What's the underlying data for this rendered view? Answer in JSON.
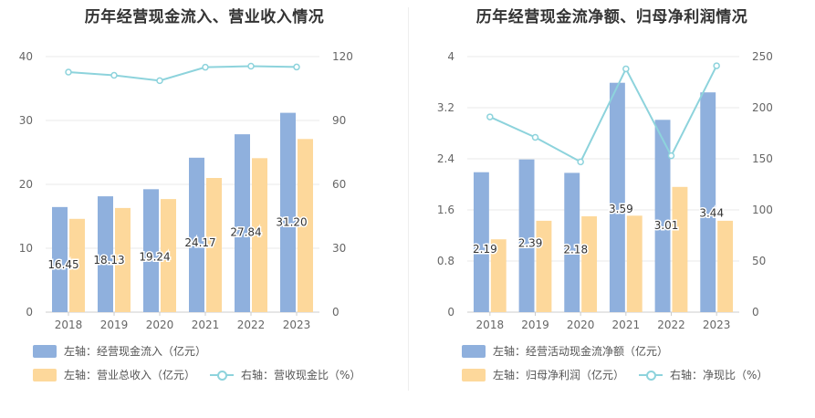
{
  "colors": {
    "bar_primary": "#8fb0dd",
    "bar_secondary": "#fdd89b",
    "line": "#8dd3dc",
    "grid": "#e8e8e8",
    "axis_text": "#666666"
  },
  "chart_data": [
    {
      "type": "bar",
      "title": "历年经营现金流入、营业收入情况",
      "categories": [
        "2018",
        "2019",
        "2020",
        "2021",
        "2022",
        "2023"
      ],
      "y_left": {
        "ticks": [
          "0",
          "10",
          "20",
          "30",
          "40"
        ],
        "lim": [
          0,
          40
        ]
      },
      "y_right": {
        "ticks": [
          "0",
          "30",
          "60",
          "90",
          "120"
        ],
        "lim": [
          0,
          120
        ]
      },
      "grid": true,
      "legend_position": "bottom-left",
      "series": [
        {
          "name": "左轴：经营现金流入（亿元）",
          "axis": "left",
          "kind": "bar",
          "values": [
            16.45,
            18.13,
            19.24,
            24.17,
            27.84,
            31.2
          ],
          "labels": [
            "16.45",
            "18.13",
            "19.24",
            "24.17",
            "27.84",
            "31.20"
          ]
        },
        {
          "name": "左轴：营业总收入（亿元）",
          "axis": "left",
          "kind": "bar",
          "values": [
            14.6,
            16.3,
            17.7,
            21.0,
            24.1,
            27.1
          ]
        },
        {
          "name": "右轴：营收现金比（%）",
          "axis": "right",
          "kind": "line",
          "values": [
            112.7,
            111.2,
            108.7,
            115.0,
            115.5,
            115.1
          ]
        }
      ]
    },
    {
      "type": "bar",
      "title": "历年经营现金流净额、归母净利润情况",
      "categories": [
        "2018",
        "2019",
        "2020",
        "2021",
        "2022",
        "2023"
      ],
      "y_left": {
        "ticks": [
          "0",
          "0.8",
          "1.6",
          "2.4",
          "3.2",
          "4"
        ],
        "lim": [
          0,
          4
        ]
      },
      "y_right": {
        "ticks": [
          "0",
          "50",
          "100",
          "150",
          "200",
          "250"
        ],
        "lim": [
          0,
          250
        ]
      },
      "grid": true,
      "legend_position": "bottom-left",
      "series": [
        {
          "name": "左轴：经营活动现金流净额（亿元）",
          "axis": "left",
          "kind": "bar",
          "values": [
            2.19,
            2.39,
            2.18,
            3.59,
            3.01,
            3.44
          ],
          "labels": [
            "2.19",
            "2.39",
            "2.18",
            "3.59",
            "3.01",
            "3.44"
          ]
        },
        {
          "name": "左轴：归母净利润（亿元）",
          "axis": "left",
          "kind": "bar",
          "values": [
            1.14,
            1.43,
            1.5,
            1.51,
            1.96,
            1.43
          ]
        },
        {
          "name": "右轴：净现比（%）",
          "axis": "right",
          "kind": "line",
          "values": [
            191,
            171,
            147,
            238,
            153,
            241
          ]
        }
      ]
    }
  ]
}
